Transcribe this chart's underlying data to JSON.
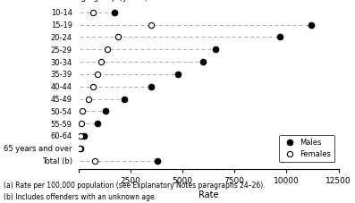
{
  "age_groups": [
    "10-14",
    "15-19",
    "20-24",
    "25-29",
    "30-34",
    "35-39",
    "40-44",
    "45-49",
    "50-54",
    "55-59",
    "60-64",
    "65 years and over",
    "Total (b)"
  ],
  "males": [
    1750,
    11200,
    9700,
    6600,
    6000,
    4800,
    3500,
    2200,
    1300,
    900,
    280,
    100,
    3800
  ],
  "females": [
    700,
    3500,
    1900,
    1400,
    1100,
    900,
    700,
    500,
    200,
    150,
    100,
    70,
    800
  ],
  "xlim": [
    0,
    12500
  ],
  "xticks": [
    0,
    2500,
    5000,
    7500,
    10000,
    12500
  ],
  "xlabel": "Rate",
  "top_label": "Age group (years)",
  "footnote1": "(a) Rate per 100,000 population (see Explanatory Notes paragraphs 24–26).",
  "footnote2": "(b) Includes offenders with an unknown age.",
  "male_color": "#000000",
  "female_color": "#000000",
  "line_color": "#aaaaaa",
  "background_color": "#ffffff",
  "legend_male": "Males",
  "legend_female": "Females"
}
